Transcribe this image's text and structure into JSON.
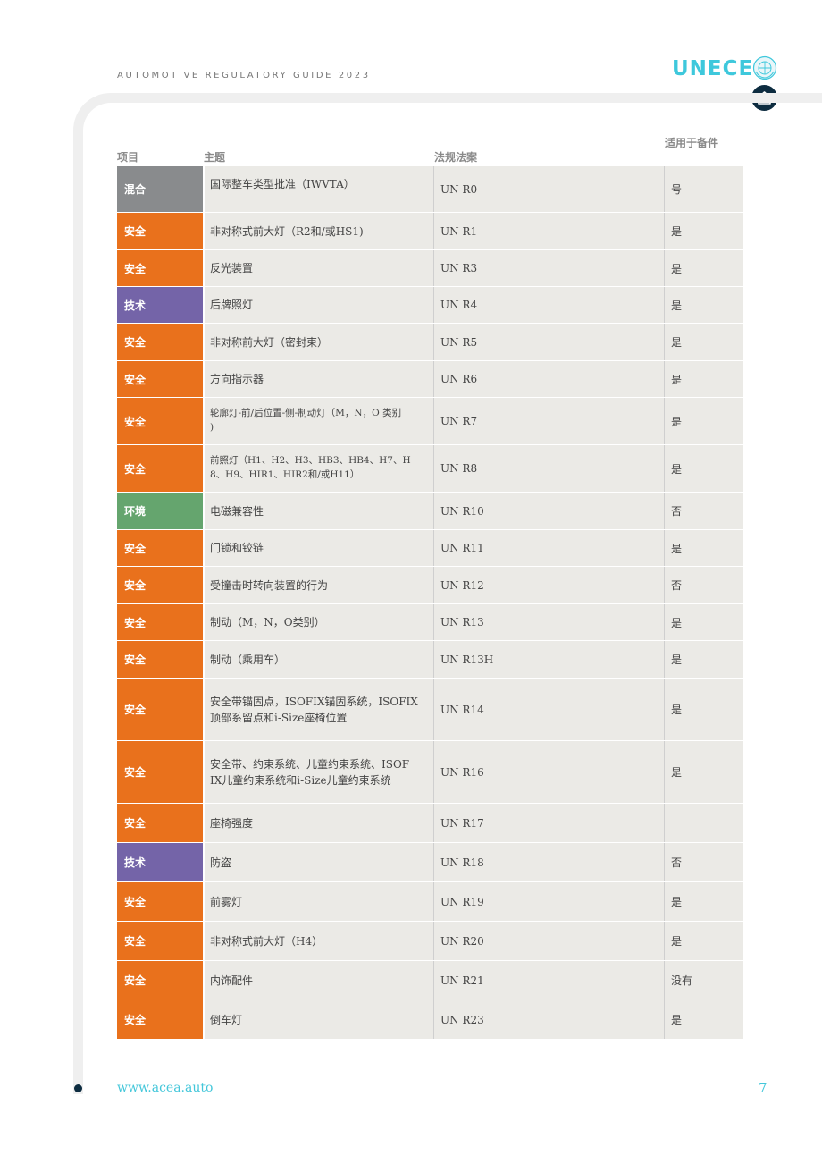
{
  "header": {
    "title": "AUTOMOTIVE REGULATORY GUIDE 2023",
    "brand": "UNECE"
  },
  "colors": {
    "safety": "#e9711c",
    "technical": "#7464a8",
    "environment": "#65a56e",
    "mixed": "#898b8d",
    "brand": "#3ec8dc"
  },
  "columns": {
    "item": "项目",
    "topic": "主题",
    "regulation": "法规法案",
    "spare": "适用于备件"
  },
  "rows": [
    {
      "category": "混合",
      "type": "mixed",
      "topic": "国际整车类型批准（IWVTA）",
      "regulation": "UN R0",
      "spare": "号"
    },
    {
      "category": "安全",
      "type": "safety",
      "topic": "非对称式前大灯（R2和/或HS1)",
      "regulation": "UN R1",
      "spare": "是"
    },
    {
      "category": "安全",
      "type": "safety",
      "topic": "反光装置",
      "regulation": "UN R3",
      "spare": "是"
    },
    {
      "category": "技术",
      "type": "technical",
      "topic": "后牌照灯",
      "regulation": "UN R4",
      "spare": "是"
    },
    {
      "category": "安全",
      "type": "safety",
      "topic": "非对称前大灯（密封束）",
      "regulation": "UN R5",
      "spare": "是"
    },
    {
      "category": "安全",
      "type": "safety",
      "topic": "方向指示器",
      "regulation": "UN R6",
      "spare": "是"
    },
    {
      "category": "安全",
      "type": "safety",
      "topic": "轮廓灯-前/后位置-侧-制动灯（M，N，O 类别\n)",
      "regulation": "UN R7",
      "spare": "是"
    },
    {
      "category": "安全",
      "type": "safety",
      "topic": "前照灯（H1、H2、H3、HB3、HB4、H7、H\n8、H9、HIR1、HIR2和/或H11）",
      "regulation": "UN R8",
      "spare": "是"
    },
    {
      "category": "环境",
      "type": "environment",
      "topic": "电磁兼容性",
      "regulation": "UN R10",
      "spare": "否"
    },
    {
      "category": "安全",
      "type": "safety",
      "topic": "门锁和铰链",
      "regulation": "UN R11",
      "spare": "是"
    },
    {
      "category": "安全",
      "type": "safety",
      "topic": "受撞击时转向装置的行为",
      "regulation": "UN R12",
      "spare": "否"
    },
    {
      "category": "安全",
      "type": "safety",
      "topic": "制动（M，N，O类别）",
      "regulation": "UN R13",
      "spare": "是"
    },
    {
      "category": "安全",
      "type": "safety",
      "topic": "制动（乘用车）",
      "regulation": "UN R13H",
      "spare": "是"
    },
    {
      "category": "安全",
      "type": "safety",
      "topic": "安全带锚固点，ISOFIX锚固系统，ISOFIX\n顶部系留点和i-Size座椅位置",
      "regulation": "UN R14",
      "spare": "是"
    },
    {
      "category": "安全",
      "type": "safety",
      "topic": "安全带、约束系统、儿童约束系统、ISOF\nIX儿童约束系统和i-Size儿童约束系统",
      "regulation": "UN R16",
      "spare": "是"
    },
    {
      "category": "安全",
      "type": "safety",
      "topic": "座椅强度",
      "regulation": "UN R17",
      "spare": ""
    },
    {
      "category": "技术",
      "type": "technical",
      "topic": "防盗",
      "regulation": "UN R18",
      "spare": "否"
    },
    {
      "category": "安全",
      "type": "safety",
      "topic": "前雾灯",
      "regulation": "UN R19",
      "spare": "是"
    },
    {
      "category": "安全",
      "type": "safety",
      "topic": "非对称式前大灯（H4）",
      "regulation": "UN R20",
      "spare": "是"
    },
    {
      "category": "安全",
      "type": "safety",
      "topic": "内饰配件",
      "regulation": "UN R21",
      "spare": "没有"
    },
    {
      "category": "安全",
      "type": "safety",
      "topic": "倒车灯",
      "regulation": "UN R23",
      "spare": "是"
    }
  ],
  "footer": {
    "url": "www.acea.auto",
    "page": "7"
  }
}
